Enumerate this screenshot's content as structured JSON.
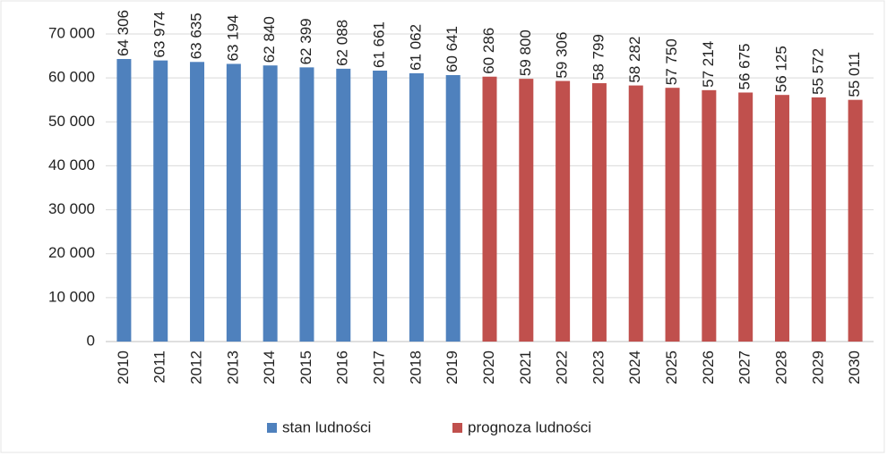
{
  "chart_data": {
    "type": "bar",
    "categories": [
      "2010",
      "2011",
      "2012",
      "2013",
      "2014",
      "2015",
      "2016",
      "2017",
      "2018",
      "2019",
      "2020",
      "2021",
      "2022",
      "2023",
      "2024",
      "2025",
      "2026",
      "2027",
      "2028",
      "2029",
      "2030"
    ],
    "series": [
      {
        "name": "stan ludności",
        "color": "#4f81bd",
        "values": [
          64306,
          63974,
          63635,
          63194,
          62840,
          62399,
          62088,
          61661,
          61062,
          60641,
          null,
          null,
          null,
          null,
          null,
          null,
          null,
          null,
          null,
          null,
          null
        ],
        "value_labels": [
          "64 306",
          "63 974",
          "63 635",
          "63 194",
          "62 840",
          "62 399",
          "62 088",
          "61 661",
          "61 062",
          "60 641",
          null,
          null,
          null,
          null,
          null,
          null,
          null,
          null,
          null,
          null,
          null
        ]
      },
      {
        "name": "prognoza ludności",
        "color": "#c0504d",
        "values": [
          null,
          null,
          null,
          null,
          null,
          null,
          null,
          null,
          null,
          null,
          60286,
          59800,
          59306,
          58799,
          58282,
          57750,
          57214,
          56675,
          56125,
          55572,
          55011
        ],
        "value_labels": [
          null,
          null,
          null,
          null,
          null,
          null,
          null,
          null,
          null,
          null,
          "60 286",
          "59 800",
          "59 306",
          "58 799",
          "58 282",
          "57 750",
          "57 214",
          "56 675",
          "56 125",
          "55 572",
          "55 011"
        ]
      }
    ],
    "ylim": [
      0,
      70000
    ],
    "yticks": [
      0,
      {
        "value": 10000,
        "label": "10 000"
      },
      {
        "value": 20000,
        "label": "20 000"
      },
      {
        "value": 30000,
        "label": "30 000"
      },
      {
        "value": 40000,
        "label": "40 000"
      },
      {
        "value": 50000,
        "label": "50 000"
      },
      {
        "value": 60000,
        "label": "60 000"
      },
      {
        "value": 70000,
        "label": "70 000"
      }
    ],
    "grid": true,
    "legend": "bottom"
  }
}
